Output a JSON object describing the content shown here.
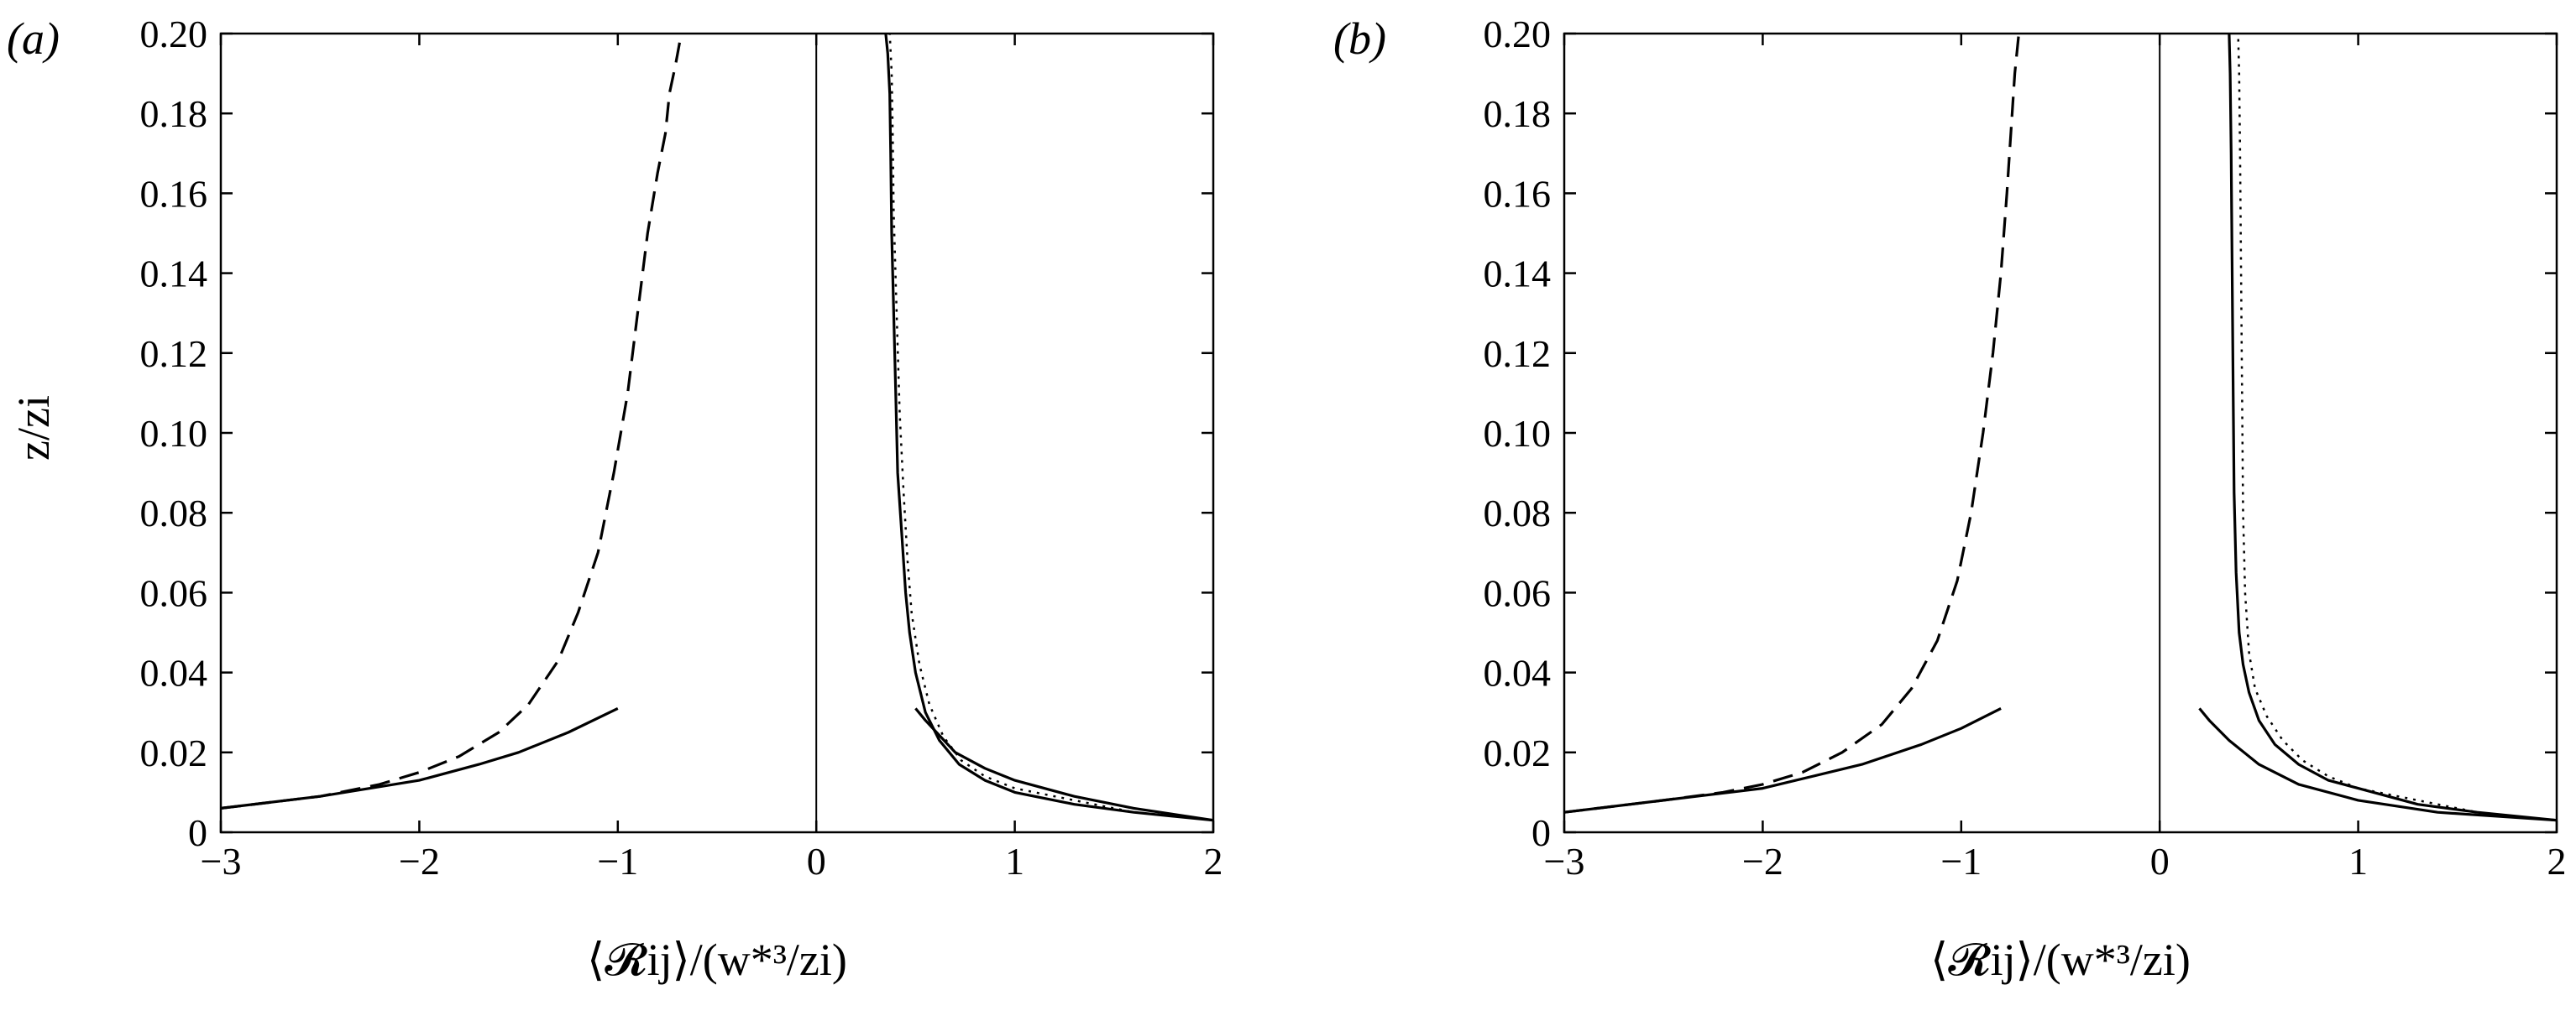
{
  "chart_data": [
    {
      "type": "line",
      "panel_label": "(a)",
      "xlabel": "⟨𝓡ij⟩/(w*³/zi)",
      "ylabel": "z/zi",
      "xlim": [
        -3,
        2
      ],
      "ylim": [
        0,
        0.2
      ],
      "xticks": [
        -3,
        -2,
        -1,
        0,
        1,
        2
      ],
      "xtick_labels": [
        "−3",
        "−2",
        "−1",
        "0",
        "1",
        "2"
      ],
      "yticks": [
        0,
        0.02,
        0.04,
        0.06,
        0.08,
        0.1,
        0.12,
        0.14,
        0.16,
        0.18,
        0.2
      ],
      "ytick_labels": [
        "0",
        "0.02",
        "0.04",
        "0.06",
        "0.08",
        "0.10",
        "0.12",
        "0.14",
        "0.16",
        "0.18",
        "0.20"
      ],
      "grid": false,
      "reference_line": {
        "x": 0
      },
      "series": [
        {
          "style": "dashed",
          "points": [
            [
              -3.0,
              0.006
            ],
            [
              -2.5,
              0.009
            ],
            [
              -2.2,
              0.012
            ],
            [
              -2.0,
              0.015
            ],
            [
              -1.8,
              0.019
            ],
            [
              -1.6,
              0.025
            ],
            [
              -1.45,
              0.032
            ],
            [
              -1.3,
              0.043
            ],
            [
              -1.2,
              0.055
            ],
            [
              -1.1,
              0.07
            ],
            [
              -1.02,
              0.09
            ],
            [
              -0.95,
              0.11
            ],
            [
              -0.9,
              0.13
            ],
            [
              -0.85,
              0.15
            ],
            [
              -0.8,
              0.165
            ],
            [
              -0.76,
              0.175
            ],
            [
              -0.74,
              0.185
            ],
            [
              -0.71,
              0.192
            ],
            [
              -0.68,
              0.2
            ]
          ]
        },
        {
          "style": "solid",
          "points": [
            [
              -3.0,
              0.006
            ],
            [
              -2.5,
              0.009
            ],
            [
              -2.0,
              0.013
            ],
            [
              -1.7,
              0.017
            ],
            [
              -1.5,
              0.02
            ],
            [
              -1.25,
              0.025
            ],
            [
              -1.0,
              0.031
            ]
          ]
        },
        {
          "style": "solid",
          "points": [
            [
              0.5,
              0.031
            ],
            [
              0.55,
              0.028
            ],
            [
              0.7,
              0.02
            ],
            [
              0.85,
              0.016
            ],
            [
              1.0,
              0.013
            ],
            [
              1.3,
              0.009
            ],
            [
              1.6,
              0.006
            ],
            [
              2.0,
              0.003
            ]
          ]
        },
        {
          "style": "solid",
          "points": [
            [
              2.0,
              0.003
            ],
            [
              1.6,
              0.005
            ],
            [
              1.3,
              0.007
            ],
            [
              1.0,
              0.01
            ],
            [
              0.85,
              0.013
            ],
            [
              0.72,
              0.017
            ],
            [
              0.62,
              0.023
            ],
            [
              0.55,
              0.03
            ],
            [
              0.5,
              0.04
            ],
            [
              0.47,
              0.05
            ],
            [
              0.45,
              0.06
            ],
            [
              0.43,
              0.075
            ],
            [
              0.41,
              0.09
            ],
            [
              0.4,
              0.11
            ],
            [
              0.39,
              0.13
            ],
            [
              0.38,
              0.15
            ],
            [
              0.375,
              0.17
            ],
            [
              0.37,
              0.185
            ],
            [
              0.36,
              0.195
            ],
            [
              0.35,
              0.2
            ]
          ]
        },
        {
          "style": "dotted",
          "points": [
            [
              2.0,
              0.003
            ],
            [
              1.6,
              0.005
            ],
            [
              1.3,
              0.008
            ],
            [
              1.0,
              0.011
            ],
            [
              0.85,
              0.014
            ],
            [
              0.73,
              0.018
            ],
            [
              0.64,
              0.024
            ],
            [
              0.57,
              0.032
            ],
            [
              0.52,
              0.042
            ],
            [
              0.48,
              0.055
            ],
            [
              0.46,
              0.068
            ],
            [
              0.44,
              0.085
            ],
            [
              0.42,
              0.105
            ],
            [
              0.405,
              0.13
            ],
            [
              0.39,
              0.155
            ],
            [
              0.385,
              0.175
            ],
            [
              0.38,
              0.19
            ],
            [
              0.37,
              0.2
            ]
          ]
        }
      ]
    },
    {
      "type": "line",
      "panel_label": "(b)",
      "xlabel": "⟨𝓡ij⟩/(w*³/zi)",
      "ylabel": "",
      "xlim": [
        -3,
        2
      ],
      "ylim": [
        0,
        0.2
      ],
      "xticks": [
        -3,
        -2,
        -1,
        0,
        1,
        2
      ],
      "xtick_labels": [
        "−3",
        "−2",
        "−1",
        "0",
        "1",
        "2"
      ],
      "yticks": [
        0,
        0.02,
        0.04,
        0.06,
        0.08,
        0.1,
        0.12,
        0.14,
        0.16,
        0.18,
        0.2
      ],
      "ytick_labels": [
        "0",
        "0.02",
        "0.04",
        "0.06",
        "0.08",
        "0.10",
        "0.12",
        "0.14",
        "0.16",
        "0.18",
        "0.20"
      ],
      "grid": false,
      "reference_line": {
        "x": 0
      },
      "series": [
        {
          "style": "dashed",
          "points": [
            [
              -3.0,
              0.005
            ],
            [
              -2.5,
              0.008
            ],
            [
              -2.2,
              0.01
            ],
            [
              -2.0,
              0.012
            ],
            [
              -1.8,
              0.015
            ],
            [
              -1.6,
              0.02
            ],
            [
              -1.4,
              0.027
            ],
            [
              -1.25,
              0.036
            ],
            [
              -1.12,
              0.048
            ],
            [
              -1.02,
              0.063
            ],
            [
              -0.95,
              0.08
            ],
            [
              -0.89,
              0.1
            ],
            [
              -0.84,
              0.12
            ],
            [
              -0.8,
              0.14
            ],
            [
              -0.77,
              0.16
            ],
            [
              -0.75,
              0.175
            ],
            [
              -0.73,
              0.19
            ],
            [
              -0.71,
              0.2
            ]
          ]
        },
        {
          "style": "solid",
          "points": [
            [
              -3.0,
              0.005
            ],
            [
              -2.5,
              0.008
            ],
            [
              -2.0,
              0.011
            ],
            [
              -1.5,
              0.017
            ],
            [
              -1.2,
              0.022
            ],
            [
              -1.0,
              0.026
            ],
            [
              -0.8,
              0.031
            ]
          ]
        },
        {
          "style": "solid",
          "points": [
            [
              0.2,
              0.031
            ],
            [
              0.25,
              0.028
            ],
            [
              0.35,
              0.023
            ],
            [
              0.5,
              0.017
            ],
            [
              0.7,
              0.012
            ],
            [
              1.0,
              0.008
            ],
            [
              1.4,
              0.005
            ],
            [
              2.0,
              0.003
            ]
          ]
        },
        {
          "style": "solid",
          "points": [
            [
              2.0,
              0.003
            ],
            [
              1.6,
              0.005
            ],
            [
              1.3,
              0.007
            ],
            [
              1.0,
              0.011
            ],
            [
              0.85,
              0.013
            ],
            [
              0.7,
              0.017
            ],
            [
              0.58,
              0.022
            ],
            [
              0.5,
              0.028
            ],
            [
              0.45,
              0.035
            ],
            [
              0.42,
              0.042
            ],
            [
              0.4,
              0.05
            ],
            [
              0.385,
              0.065
            ],
            [
              0.375,
              0.085
            ],
            [
              0.37,
              0.11
            ],
            [
              0.365,
              0.14
            ],
            [
              0.36,
              0.17
            ],
            [
              0.355,
              0.19
            ],
            [
              0.35,
              0.2
            ]
          ]
        },
        {
          "style": "dotted",
          "points": [
            [
              2.0,
              0.003
            ],
            [
              1.6,
              0.005
            ],
            [
              1.3,
              0.008
            ],
            [
              1.0,
              0.011
            ],
            [
              0.85,
              0.014
            ],
            [
              0.72,
              0.018
            ],
            [
              0.62,
              0.023
            ],
            [
              0.54,
              0.029
            ],
            [
              0.48,
              0.036
            ],
            [
              0.45,
              0.045
            ],
            [
              0.43,
              0.06
            ],
            [
              0.42,
              0.08
            ],
            [
              0.415,
              0.11
            ],
            [
              0.41,
              0.14
            ],
            [
              0.405,
              0.17
            ],
            [
              0.4,
              0.19
            ],
            [
              0.395,
              0.2
            ]
          ]
        }
      ]
    }
  ]
}
